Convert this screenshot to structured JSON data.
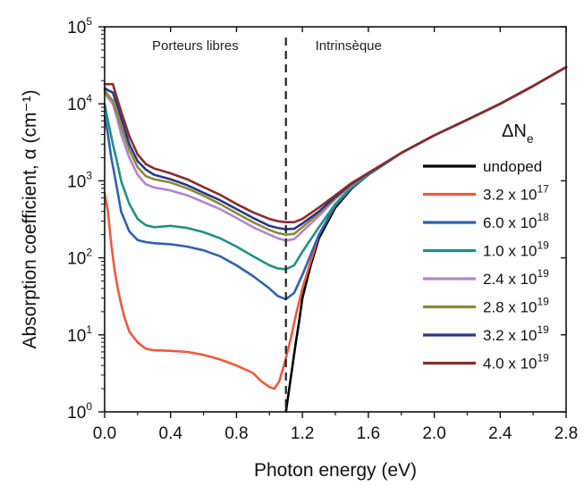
{
  "chart_data": {
    "type": "line",
    "xlabel": "Photon energy (eV)",
    "ylabel": "Absorption coefficient, α (cm⁻¹)",
    "xlim": [
      0.0,
      2.8
    ],
    "ylim": [
      1,
      100000
    ],
    "yscale": "log",
    "x_ticks": [
      "0.0",
      "0.4",
      "0.8",
      "1.2",
      "1.6",
      "2.0",
      "2.4",
      "2.8"
    ],
    "y_ticks": [
      {
        "base": "10",
        "exp": "0",
        "value": 1
      },
      {
        "base": "10",
        "exp": "1",
        "value": 10
      },
      {
        "base": "10",
        "exp": "2",
        "value": 100
      },
      {
        "base": "10",
        "exp": "3",
        "value": 1000
      },
      {
        "base": "10",
        "exp": "4",
        "value": 10000
      },
      {
        "base": "10",
        "exp": "5",
        "value": 100000
      }
    ],
    "grid": false,
    "legend_position": "right",
    "legend_title": {
      "main": "ΔN",
      "sub": "e"
    },
    "annotations": [
      {
        "text": "Porteurs libres",
        "x": 0.55,
        "y": 50000
      },
      {
        "text": "Intrinsèque",
        "x": 1.48,
        "y": 50000
      }
    ],
    "reference_line": {
      "x": 1.1,
      "style": "dashed"
    },
    "series": [
      {
        "label_main": "undoped",
        "label_exp": "",
        "color": "#000000",
        "x": [
          1.1,
          1.12,
          1.14,
          1.16,
          1.18,
          1.2,
          1.25,
          1.3,
          1.4,
          1.5,
          1.6,
          1.8,
          2.0,
          2.2,
          2.4,
          2.6,
          2.8
        ],
        "y": [
          1,
          2,
          4,
          8,
          15,
          30,
          80,
          180,
          450,
          800,
          1200,
          2300,
          3900,
          6200,
          10000,
          17000,
          30000
        ]
      },
      {
        "label_main": "3.2 x 10",
        "label_exp": "17",
        "color": "#ee5a3a",
        "x": [
          0.0,
          0.02,
          0.04,
          0.06,
          0.08,
          0.1,
          0.12,
          0.15,
          0.2,
          0.25,
          0.3,
          0.4,
          0.5,
          0.6,
          0.7,
          0.8,
          0.9,
          0.95,
          1.0,
          1.03,
          1.06,
          1.08,
          1.1,
          1.13,
          1.16,
          1.2,
          1.25,
          1.3,
          1.4,
          1.5,
          1.6,
          1.8,
          2.0,
          2.2,
          2.4,
          2.6,
          2.8
        ],
        "y": [
          700,
          400,
          150,
          70,
          40,
          25,
          17,
          11,
          8,
          6.6,
          6.3,
          6.2,
          6.0,
          5.5,
          4.8,
          4.0,
          3.2,
          2.5,
          2.1,
          2.0,
          2.5,
          3.5,
          5,
          9,
          18,
          40,
          90,
          200,
          480,
          820,
          1200,
          2300,
          3900,
          6200,
          10000,
          17000,
          30000
        ]
      },
      {
        "label_main": "6.0 x 10",
        "label_exp": "18",
        "color": "#2d62b0",
        "x": [
          0.0,
          0.02,
          0.04,
          0.06,
          0.08,
          0.1,
          0.15,
          0.2,
          0.25,
          0.3,
          0.4,
          0.5,
          0.6,
          0.7,
          0.8,
          0.9,
          1.0,
          1.05,
          1.1,
          1.15,
          1.2,
          1.3,
          1.4,
          1.5,
          1.6,
          1.8,
          2.0,
          2.2,
          2.4,
          2.6,
          2.8
        ],
        "y": [
          7000,
          4000,
          2000,
          1200,
          700,
          400,
          220,
          170,
          160,
          155,
          150,
          140,
          125,
          105,
          80,
          58,
          40,
          32,
          29,
          35,
          60,
          200,
          480,
          820,
          1200,
          2300,
          3900,
          6200,
          10000,
          17000,
          30000
        ]
      },
      {
        "label_main": "1.0 x 10",
        "label_exp": "19",
        "color": "#1e9184",
        "x": [
          0.0,
          0.02,
          0.05,
          0.08,
          0.1,
          0.15,
          0.2,
          0.25,
          0.3,
          0.4,
          0.5,
          0.6,
          0.7,
          0.8,
          0.9,
          1.0,
          1.05,
          1.1,
          1.15,
          1.2,
          1.3,
          1.4,
          1.5,
          1.6,
          1.8,
          2.0,
          2.2,
          2.4,
          2.6,
          2.8
        ],
        "y": [
          10000,
          6000,
          3000,
          1600,
          1000,
          500,
          320,
          265,
          250,
          260,
          245,
          215,
          180,
          140,
          105,
          80,
          73,
          71,
          80,
          120,
          250,
          500,
          830,
          1200,
          2300,
          3900,
          6200,
          10000,
          17000,
          30000
        ]
      },
      {
        "label_main": "2.4 x 10",
        "label_exp": "19",
        "color": "#b186cc",
        "x": [
          0.0,
          0.02,
          0.05,
          0.08,
          0.1,
          0.15,
          0.2,
          0.25,
          0.3,
          0.4,
          0.5,
          0.6,
          0.7,
          0.8,
          0.9,
          1.0,
          1.05,
          1.1,
          1.15,
          1.2,
          1.3,
          1.4,
          1.5,
          1.6,
          1.8,
          2.0,
          2.2,
          2.4,
          2.6,
          2.8
        ],
        "y": [
          14000,
          12000,
          10000,
          6000,
          4000,
          2000,
          1200,
          900,
          820,
          750,
          650,
          530,
          430,
          330,
          250,
          200,
          180,
          168,
          175,
          220,
          350,
          580,
          880,
          1250,
          2300,
          3900,
          6200,
          10000,
          17000,
          30000
        ]
      },
      {
        "label_main": "2.8 x 10",
        "label_exp": "19",
        "color": "#8b8a38",
        "x": [
          0.0,
          0.02,
          0.05,
          0.08,
          0.1,
          0.15,
          0.2,
          0.25,
          0.3,
          0.4,
          0.5,
          0.6,
          0.7,
          0.8,
          0.9,
          1.0,
          1.05,
          1.1,
          1.15,
          1.2,
          1.3,
          1.4,
          1.5,
          1.6,
          1.8,
          2.0,
          2.2,
          2.4,
          2.6,
          2.8
        ],
        "y": [
          15000,
          13000,
          11000,
          7000,
          5000,
          2500,
          1500,
          1150,
          1050,
          950,
          800,
          640,
          500,
          380,
          290,
          230,
          210,
          200,
          205,
          250,
          380,
          600,
          900,
          1250,
          2300,
          3900,
          6200,
          10000,
          17000,
          30000
        ]
      },
      {
        "label_main": "3.2 x 10",
        "label_exp": "19",
        "color": "#283887",
        "x": [
          0.0,
          0.02,
          0.05,
          0.08,
          0.1,
          0.15,
          0.2,
          0.25,
          0.3,
          0.4,
          0.5,
          0.6,
          0.7,
          0.8,
          0.9,
          1.0,
          1.05,
          1.1,
          1.15,
          1.2,
          1.3,
          1.4,
          1.5,
          1.6,
          1.8,
          2.0,
          2.2,
          2.4,
          2.6,
          2.8
        ],
        "y": [
          16000,
          15000,
          14000,
          9000,
          6500,
          3000,
          1800,
          1400,
          1200,
          1050,
          880,
          700,
          560,
          430,
          330,
          260,
          245,
          235,
          238,
          280,
          400,
          620,
          920,
          1250,
          2300,
          3900,
          6200,
          10000,
          17000,
          30000
        ]
      },
      {
        "label_main": "4.0 x 10",
        "label_exp": "19",
        "color": "#8b2b2b",
        "x": [
          0.0,
          0.02,
          0.05,
          0.08,
          0.1,
          0.15,
          0.2,
          0.25,
          0.3,
          0.4,
          0.5,
          0.6,
          0.7,
          0.8,
          0.9,
          1.0,
          1.05,
          1.1,
          1.15,
          1.2,
          1.3,
          1.4,
          1.5,
          1.6,
          1.8,
          2.0,
          2.2,
          2.4,
          2.6,
          2.8
        ],
        "y": [
          18000,
          18000,
          18000,
          11000,
          8000,
          3800,
          2200,
          1650,
          1450,
          1250,
          1050,
          830,
          660,
          500,
          390,
          320,
          300,
          290,
          290,
          320,
          450,
          650,
          940,
          1270,
          2300,
          3900,
          6200,
          10000,
          17000,
          30000
        ]
      }
    ]
  }
}
